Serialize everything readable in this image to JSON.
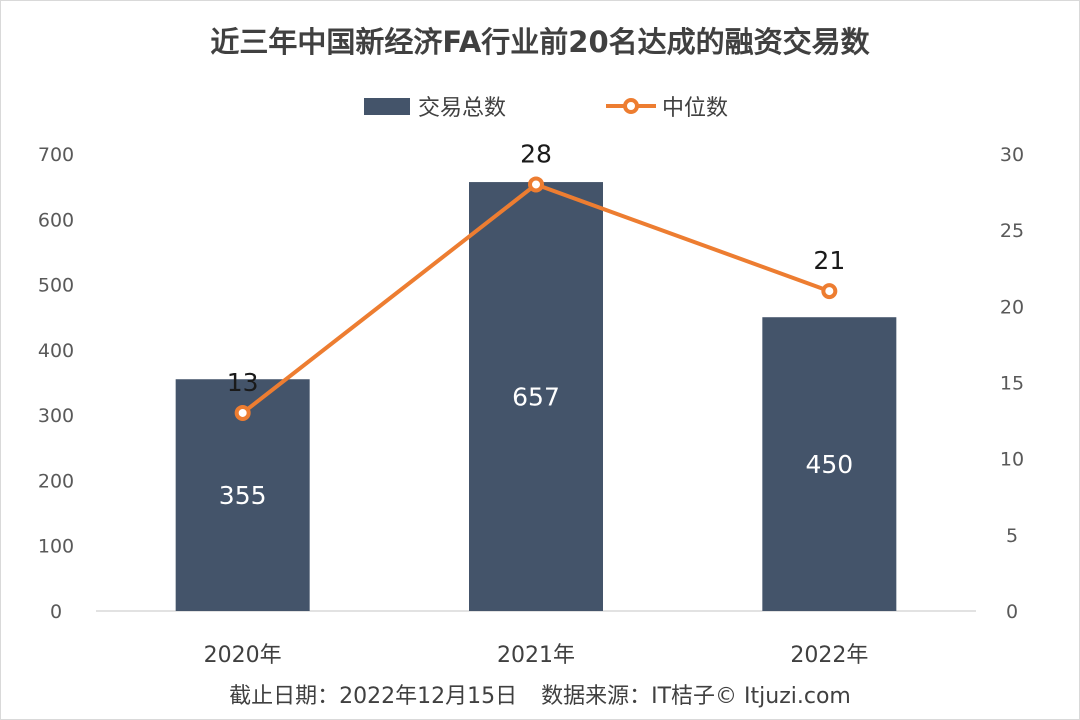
{
  "chart_data": {
    "type": "bar",
    "title": "近三年中国新经济FA行业前20名达成的融资交易数",
    "categories": [
      "2020年",
      "2021年",
      "2022年"
    ],
    "series": [
      {
        "name": "交易总数",
        "type": "bar",
        "axis": "left",
        "color": "#44546a",
        "values": [
          355,
          657,
          450
        ]
      },
      {
        "name": "中位数",
        "type": "line",
        "axis": "right",
        "color": "#ed7d31",
        "values": [
          13,
          28,
          21
        ]
      }
    ],
    "y_left": {
      "range": [
        0,
        700
      ],
      "ticks": [
        0,
        100,
        200,
        300,
        400,
        500,
        600,
        700
      ]
    },
    "y_right": {
      "range": [
        0,
        30
      ],
      "ticks": [
        0,
        5,
        10,
        15,
        20,
        25,
        30
      ]
    },
    "legend_position": "top",
    "grid": false
  },
  "footer": {
    "date_text": "截止日期：2022年12月15日",
    "source_text": "数据来源：IT桔子© Itjuzi.com"
  }
}
